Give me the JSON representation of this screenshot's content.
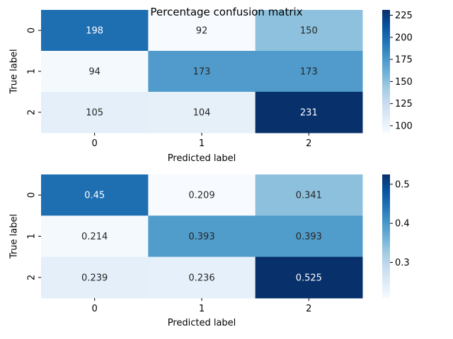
{
  "title": "Percentage confusion matrix",
  "colormap": {
    "name": "Blues",
    "stops": [
      "#f7fbff",
      "#deebf7",
      "#c6dbef",
      "#9ecae1",
      "#6baed6",
      "#4292c6",
      "#2171b5",
      "#08519c",
      "#08306b"
    ]
  },
  "chart_data": [
    {
      "type": "heatmap",
      "xlabel": "Predicted label",
      "ylabel": "True label",
      "x_categories": [
        "0",
        "1",
        "2"
      ],
      "y_categories": [
        "0",
        "1",
        "2"
      ],
      "values": [
        [
          198,
          92,
          150
        ],
        [
          94,
          173,
          173
        ],
        [
          105,
          104,
          231
        ]
      ],
      "value_labels": [
        [
          "198",
          "92",
          "150"
        ],
        [
          "94",
          "173",
          "173"
        ],
        [
          "105",
          "104",
          "231"
        ]
      ],
      "vmin": 92,
      "vmax": 231,
      "colorbar_ticks": [
        100,
        125,
        150,
        175,
        200,
        225
      ],
      "colorbar_tick_labels": [
        "100",
        "125",
        "150",
        "175",
        "200",
        "225"
      ]
    },
    {
      "type": "heatmap",
      "xlabel": "Predicted label",
      "ylabel": "True label",
      "x_categories": [
        "0",
        "1",
        "2"
      ],
      "y_categories": [
        "0",
        "1",
        "2"
      ],
      "values": [
        [
          0.45,
          0.209,
          0.341
        ],
        [
          0.214,
          0.393,
          0.393
        ],
        [
          0.239,
          0.236,
          0.525
        ]
      ],
      "value_labels": [
        [
          "0.45",
          "0.209",
          "0.341"
        ],
        [
          "0.214",
          "0.393",
          "0.393"
        ],
        [
          "0.239",
          "0.236",
          "0.525"
        ]
      ],
      "vmin": 0.209,
      "vmax": 0.525,
      "colorbar_ticks": [
        0.3,
        0.4,
        0.5
      ],
      "colorbar_tick_labels": [
        "0.3",
        "0.4",
        "0.5"
      ]
    }
  ]
}
